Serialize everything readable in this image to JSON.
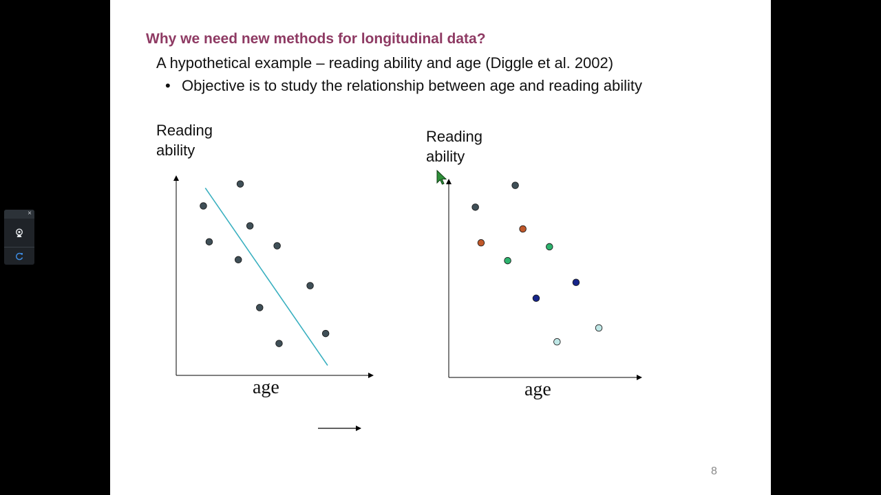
{
  "slide": {
    "title": "Why we need new methods for longitudinal data?",
    "subtitle": "A hypothetical example – reading ability and age (Diggle et al. 2002)",
    "bullet": "Objective is to study the relationship between age and reading ability",
    "page_number": "8"
  },
  "toolbar": {
    "close_glyph": "×",
    "icons": [
      "webcam-icon",
      "refresh-icon"
    ],
    "colors": {
      "webcam": "#e6e9ec",
      "refresh": "#3d8be0"
    }
  },
  "chart_data": [
    {
      "type": "scatter",
      "ylabel_line1": "Reading",
      "ylabel_line2": "ability",
      "xlabel": "age",
      "xlim": [
        0,
        10
      ],
      "ylim": [
        0,
        10
      ],
      "points": [
        {
          "x": 1.4,
          "y": 8.5,
          "color": "#3f4f57"
        },
        {
          "x": 1.7,
          "y": 6.7,
          "color": "#3f4f57"
        },
        {
          "x": 3.3,
          "y": 9.6,
          "color": "#3f4f57"
        },
        {
          "x": 3.2,
          "y": 5.8,
          "color": "#3f4f57"
        },
        {
          "x": 3.8,
          "y": 7.5,
          "color": "#3f4f57"
        },
        {
          "x": 4.3,
          "y": 3.4,
          "color": "#3f4f57"
        },
        {
          "x": 5.2,
          "y": 6.5,
          "color": "#3f4f57"
        },
        {
          "x": 5.3,
          "y": 1.6,
          "color": "#3f4f57"
        },
        {
          "x": 6.9,
          "y": 4.5,
          "color": "#3f4f57"
        },
        {
          "x": 7.7,
          "y": 2.1,
          "color": "#3f4f57"
        }
      ],
      "trend_line": {
        "x1": 1.5,
        "y1": 9.4,
        "x2": 7.8,
        "y2": 0.5,
        "color": "#3ab0c0"
      },
      "extra_arrow": true
    },
    {
      "type": "scatter",
      "ylabel_line1": "Reading",
      "ylabel_line2": "ability",
      "xlabel": "age",
      "xlim": [
        0,
        10
      ],
      "ylim": [
        0,
        10
      ],
      "points": [
        {
          "x": 1.4,
          "y": 8.6,
          "color": "#3f4f57"
        },
        {
          "x": 3.5,
          "y": 9.7,
          "color": "#3f4f57"
        },
        {
          "x": 1.7,
          "y": 6.8,
          "color": "#c0582a"
        },
        {
          "x": 3.9,
          "y": 7.5,
          "color": "#c0582a"
        },
        {
          "x": 3.1,
          "y": 5.9,
          "color": "#2db36e"
        },
        {
          "x": 5.3,
          "y": 6.6,
          "color": "#2db36e"
        },
        {
          "x": 4.6,
          "y": 4.0,
          "color": "#16258a"
        },
        {
          "x": 6.7,
          "y": 4.8,
          "color": "#16258a"
        },
        {
          "x": 5.7,
          "y": 1.8,
          "color": "#bfe7e6"
        },
        {
          "x": 7.9,
          "y": 2.5,
          "color": "#bfe7e6"
        }
      ]
    }
  ]
}
